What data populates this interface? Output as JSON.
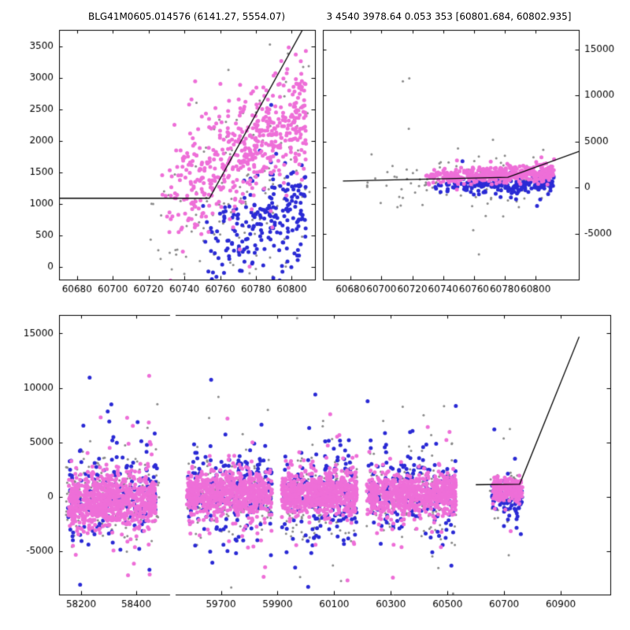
{
  "chart_data": {
    "type": "scatter",
    "title_left": "BLG41M0605.014576 (6141.27, 5554.07)",
    "title_right": "3 4540 3978.64 0.053 353 [60801.684, 60802.935]",
    "legend": "none",
    "grid": false,
    "point_colors": {
      "magenta": "#EE6FD8",
      "blue": "#2B2BD5",
      "gray": "#8A8A8A"
    },
    "line_color": "#000000",
    "seed": 20240601,
    "panels": [
      {
        "id": "top_left",
        "px": {
          "l": 75,
          "t": 38,
          "r": 400,
          "b": 355
        },
        "x": {
          "min": 60670,
          "max": 60813,
          "ticks": [
            60680,
            60700,
            60720,
            60740,
            60760,
            60780,
            60800
          ],
          "labels": true
        },
        "y": {
          "min": -200,
          "max": 3760,
          "ticks": [
            0,
            500,
            1000,
            1500,
            2000,
            2500,
            3000,
            3500
          ],
          "side": "left"
        },
        "spines": [
          "left",
          "right",
          "top",
          "bottom"
        ],
        "line": [
          [
            60670,
            1090
          ],
          [
            60754,
            1090
          ],
          [
            60806,
            3760
          ]
        ],
        "clusters": [
          {
            "color": "gray",
            "n": 150,
            "xmin": 60720,
            "xmax": 60810,
            "xbias": 0.85,
            "ybase": 500,
            "yslope": 14,
            "ysigma": 750,
            "outFrac": 0.12,
            "outMult": 2.2,
            "r": 1.5
          },
          {
            "color": "blue",
            "n": 230,
            "xmin": 60748,
            "xmax": 60808,
            "xbias": 0.65,
            "ybase": 250,
            "yslope": 13,
            "ysigma": 420,
            "outFrac": 0.1,
            "outMult": 2.2,
            "r": 2.5
          },
          {
            "color": "magenta",
            "n": 520,
            "xmin": 60726,
            "xmax": 60808,
            "xbias": 0.7,
            "ybase": 1050,
            "yslope": 17,
            "ysigma": 430,
            "outFrac": 0.1,
            "outMult": 2.0,
            "r": 2.5
          }
        ]
      },
      {
        "id": "top_right",
        "px": {
          "l": 410,
          "t": 38,
          "r": 735,
          "b": 355
        },
        "x": {
          "min": 60662,
          "max": 60828,
          "ticks": [
            60680,
            60700,
            60720,
            60740,
            60760,
            60780,
            60800
          ],
          "labels": true
        },
        "y": {
          "min": -10000,
          "max": 17100,
          "ticks": [
            -5000,
            0,
            5000,
            10000,
            15000
          ],
          "side": "right"
        },
        "spines": [
          "left",
          "right",
          "top",
          "bottom"
        ],
        "line": [
          [
            60675,
            700
          ],
          [
            60782,
            1100
          ],
          [
            60828,
            3900
          ]
        ],
        "clusters": [
          {
            "color": "gray",
            "n": 120,
            "xmin": 60690,
            "xmax": 60812,
            "xbias": 0.8,
            "ybase": 600,
            "yslope": 2,
            "ysigma": 1400,
            "outFrac": 0.18,
            "outMult": 3.2,
            "r": 1.5
          },
          {
            "color": "blue",
            "n": 210,
            "xmin": 60732,
            "xmax": 60812,
            "xbias": 0.7,
            "ybase": 100,
            "yslope": 4,
            "ysigma": 420,
            "outFrac": 0.1,
            "outMult": 4.5,
            "r": 2.5
          },
          {
            "color": "magenta",
            "n": 430,
            "xmin": 60728,
            "xmax": 60812,
            "xbias": 0.7,
            "ybase": 1050,
            "yslope": 7,
            "ysigma": 420,
            "outFrac": 0.07,
            "outMult": 2.5,
            "r": 2.5
          }
        ]
      },
      {
        "id": "bottom_left",
        "px": {
          "l": 75,
          "t": 400,
          "r": 215,
          "b": 755
        },
        "x": {
          "min": 58120,
          "max": 58520,
          "ticks": [
            58200,
            58400
          ],
          "labels": true
        },
        "y": {
          "min": -9000,
          "max": 16700,
          "ticks": [
            -5000,
            0,
            5000,
            10000,
            15000
          ],
          "side": "left"
        },
        "spines": [
          "left",
          "top",
          "bottom"
        ],
        "line": [],
        "clusters": [
          {
            "color": "gray",
            "n": 190,
            "xmin": 58145,
            "xmax": 58485,
            "ybase": 200,
            "ysigma": 1900,
            "outFrac": 0.15,
            "outMult": 3.0,
            "r": 1.5
          },
          {
            "color": "blue",
            "n": 190,
            "xmin": 58150,
            "xmax": 58480,
            "ybase": 300,
            "ysigma": 2300,
            "outFrac": 0.15,
            "outMult": 2.8,
            "r": 2.5
          },
          {
            "color": "magenta",
            "n": 780,
            "xmin": 58155,
            "xmax": 58470,
            "ybase": -300,
            "ysigma": 1250,
            "outFrac": 0.1,
            "outMult": 3.0,
            "r": 2.5
          }
        ]
      },
      {
        "id": "bottom_right",
        "px": {
          "l": 223,
          "t": 400,
          "r": 775,
          "b": 755
        },
        "x": {
          "min": 59540,
          "max": 61075,
          "ticks": [
            59700,
            59900,
            60100,
            60300,
            60500,
            60700,
            60900
          ],
          "labels": true
        },
        "y": {
          "min": -9000,
          "max": 16700,
          "ticks": [
            -5000,
            0,
            5000,
            10000,
            15000
          ],
          "side": "none"
        },
        "spines": [
          "right",
          "top",
          "bottom"
        ],
        "line": [
          [
            60600,
            1100
          ],
          [
            60755,
            1150
          ],
          [
            60965,
            14700
          ]
        ],
        "clusters": [
          {
            "color": "gray",
            "n": 180,
            "xmin": 59580,
            "xmax": 59880,
            "ybase": 100,
            "ysigma": 1700,
            "outFrac": 0.15,
            "outMult": 3.0,
            "r": 1.5
          },
          {
            "color": "gray",
            "n": 170,
            "xmin": 59915,
            "xmax": 60180,
            "ybase": 100,
            "ysigma": 1700,
            "outFrac": 0.15,
            "outMult": 3.0,
            "r": 1.5
          },
          {
            "color": "gray",
            "n": 170,
            "xmin": 60215,
            "xmax": 60530,
            "ybase": 100,
            "ysigma": 1700,
            "outFrac": 0.15,
            "outMult": 3.0,
            "r": 1.5
          },
          {
            "color": "gray",
            "n": 60,
            "xmin": 60650,
            "xmax": 60765,
            "ybase": 500,
            "ysigma": 1300,
            "outFrac": 0.1,
            "outMult": 3.0,
            "r": 1.5
          },
          {
            "color": "blue",
            "n": 200,
            "xmin": 59580,
            "xmax": 59880,
            "ybase": 400,
            "ysigma": 2100,
            "outFrac": 0.12,
            "outMult": 2.6,
            "r": 2.5
          },
          {
            "color": "blue",
            "n": 190,
            "xmin": 59915,
            "xmax": 60180,
            "ybase": 400,
            "ysigma": 2100,
            "outFrac": 0.12,
            "outMult": 2.6,
            "r": 2.5
          },
          {
            "color": "blue",
            "n": 190,
            "xmin": 60215,
            "xmax": 60530,
            "ybase": 400,
            "ysigma": 2100,
            "outFrac": 0.12,
            "outMult": 2.6,
            "r": 2.5
          },
          {
            "color": "blue",
            "n": 85,
            "xmin": 60655,
            "xmax": 60765,
            "ybase": -100,
            "ysigma": 900,
            "outFrac": 0.12,
            "outMult": 4.0,
            "r": 2.5
          },
          {
            "color": "magenta",
            "n": 720,
            "xmin": 59580,
            "xmax": 59880,
            "ybase": 250,
            "ysigma": 1000,
            "outFrac": 0.12,
            "outMult": 3.2,
            "r": 2.5
          },
          {
            "color": "magenta",
            "n": 680,
            "xmin": 59915,
            "xmax": 60180,
            "ybase": 250,
            "ysigma": 1000,
            "outFrac": 0.12,
            "outMult": 3.2,
            "r": 2.5
          },
          {
            "color": "magenta",
            "n": 680,
            "xmin": 60215,
            "xmax": 60530,
            "ybase": 250,
            "ysigma": 1000,
            "outFrac": 0.12,
            "outMult": 3.2,
            "r": 2.5
          },
          {
            "color": "magenta",
            "n": 210,
            "xmin": 60660,
            "xmax": 60765,
            "ybase": 700,
            "ysigma": 550,
            "outFrac": 0.06,
            "outMult": 3.0,
            "r": 2.5
          }
        ]
      }
    ]
  }
}
